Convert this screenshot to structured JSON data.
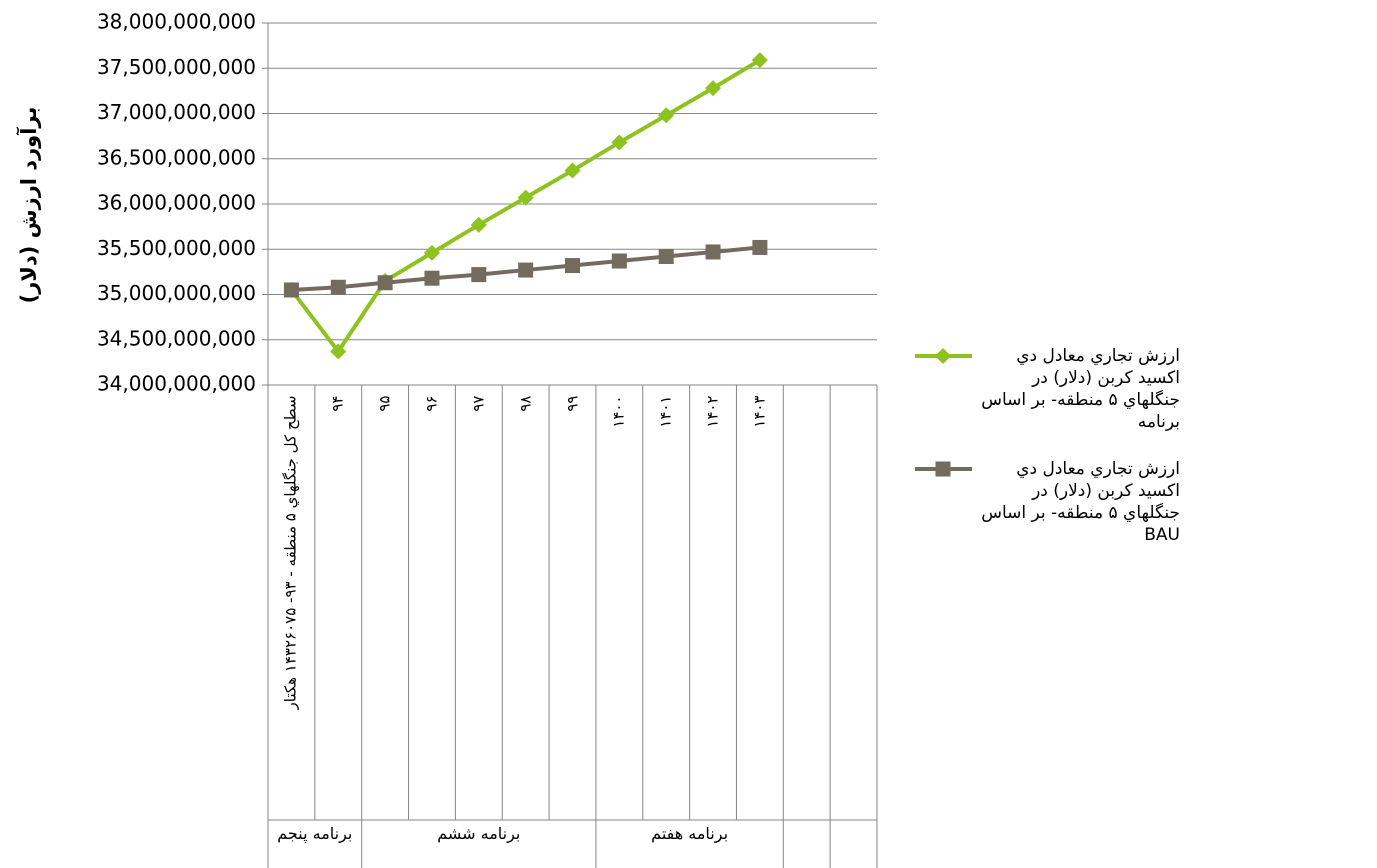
{
  "chart_data": {
    "type": "line",
    "ylabel": "برآورد ارزش (دلار)",
    "categories": [
      "سطح کل جنگلهاي ۵ منطقه - ۹۳- ۱۴۳۲۶۰۷۵ هکتار",
      "۹۴",
      "۹۵",
      "۹۶",
      "۹۷",
      "۹۸",
      "۹۹",
      "۱۴۰۰",
      "۱۴۰۱",
      "۱۴۰۲",
      "۱۴۰۳",
      null,
      null
    ],
    "groups": [
      {
        "label": "برنامه پنجم",
        "span": 2
      },
      {
        "label": "برنامه ششم",
        "span": 5
      },
      {
        "label": "برنامه هفتم",
        "span": 4
      },
      {
        "label": null,
        "span": 1
      },
      {
        "label": null,
        "span": 1
      }
    ],
    "series": [
      {
        "name": "ارزش تجاري معادل دي اكسيد كربن (دلار) در جنگلهاي ۵ منطقه- بر اساس برنامه",
        "color": "#8dc21f",
        "marker": "diamond",
        "values": [
          35050000000,
          34370000000,
          35150000000,
          35460000000,
          35770000000,
          36070000000,
          36370000000,
          36680000000,
          36980000000,
          37280000000,
          37590000000,
          null,
          null
        ]
      },
      {
        "name": "ارزش تجاري معادل دي اكسيد كربن (دلار) در جنگلهاي ۵ منطقه- بر اساس BAU",
        "color": "#736b5e",
        "marker": "square",
        "values": [
          35050000000,
          35080000000,
          35130000000,
          35180000000,
          35220000000,
          35270000000,
          35320000000,
          35370000000,
          35420000000,
          35470000000,
          35520000000,
          null,
          null
        ]
      }
    ],
    "ylim": [
      34000000000,
      38000000000
    ],
    "yticks": [
      {
        "value": 34000000000,
        "label": "34,000,000,000"
      },
      {
        "value": 34500000000,
        "label": "34,500,000,000"
      },
      {
        "value": 35000000000,
        "label": "35,000,000,000"
      },
      {
        "value": 35500000000,
        "label": "35,500,000,000"
      },
      {
        "value": 36000000000,
        "label": "36,000,000,000"
      },
      {
        "value": 36500000000,
        "label": "36,500,000,000"
      },
      {
        "value": 37000000000,
        "label": "37,000,000,000"
      },
      {
        "value": 37500000000,
        "label": "37,500,000,000"
      },
      {
        "value": 38000000000,
        "label": "38,000,000,000"
      }
    ],
    "grid": true,
    "legend": "right"
  }
}
